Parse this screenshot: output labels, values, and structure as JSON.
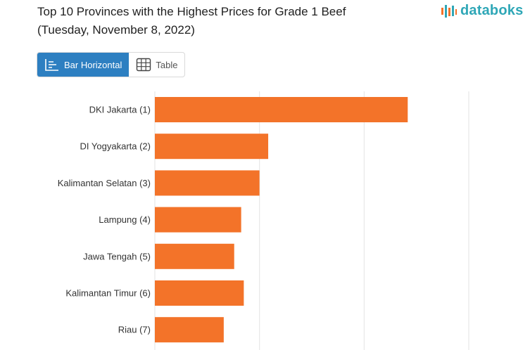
{
  "header": {
    "title_line1": "Top 10 Provinces with the Highest Prices for Grade 1 Beef",
    "title_line2": "(Tuesday, November 8, 2022)"
  },
  "brand": {
    "logo_text": "databoks",
    "logo_icon": "databoks-logo-icon"
  },
  "view_toggle": {
    "bar_label": "Bar Horizontal",
    "bar_icon": "bar-horizontal-icon",
    "table_label": "Table",
    "table_icon": "table-grid-icon",
    "active": "bar"
  },
  "colors": {
    "bar": "#f37329",
    "grid": "#e3e3e3",
    "active_toggle": "#2d7fc1",
    "brand": "#2fa7b7"
  },
  "chart_data": {
    "type": "bar",
    "orientation": "horizontal",
    "categories": [
      "DKI Jakarta (1)",
      "DI Yogyakarta (2)",
      "Kalimantan Selatan (3)",
      "Lampung (4)",
      "Jawa Tengah (5)",
      "Kalimantan Timur (6)",
      "Riau (7)"
    ],
    "values": [
      145000,
      65000,
      60000,
      49500,
      45500,
      51000,
      39500
    ],
    "xlim": [
      0,
      180000
    ],
    "grid": true,
    "xlabel": "",
    "ylabel": ""
  }
}
